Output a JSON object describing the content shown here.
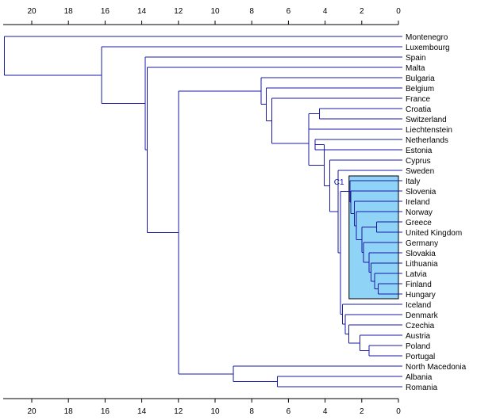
{
  "diagram": {
    "type": "dendrogram",
    "axis_ticks": [
      "20",
      "18",
      "16",
      "14",
      "12",
      "10",
      "8",
      "6",
      "4",
      "2",
      "0"
    ],
    "axis_range": [
      21.5,
      0
    ],
    "colors": {
      "branch": "#1a1aa6",
      "highlight_fill": "#8fd3f7",
      "highlight_border": "#000000",
      "axis": "#000000"
    },
    "leaves": [
      "Montenegro",
      "Luxembourg",
      "Spain",
      "Malta",
      "Bulgaria",
      "Belgium",
      "France",
      "Croatia",
      "Switzerland",
      "Liechtenstein",
      "Netherlands",
      "Estonia",
      "Cyprus",
      "Sweden",
      "Italy",
      "Slovenia",
      "Ireland",
      "Norway",
      "Greece",
      "United Kingdom",
      "Germany",
      "Slovakia",
      "Lithuania",
      "Latvia",
      "Finland",
      "Hungary",
      "Iceland",
      "Denmark",
      "Czechia",
      "Austria",
      "Poland",
      "Portugal",
      "North Macedonia",
      "Albania",
      "Romania"
    ],
    "merges": [
      {
        "id": "nPoPt",
        "children": [
          "Poland",
          "Portugal"
        ],
        "height": 1.6
      },
      {
        "id": "nGrUK",
        "children": [
          "Greece",
          "United Kingdom"
        ],
        "height": 1.2
      },
      {
        "id": "nFiHu",
        "children": [
          "Finland",
          "Hungary"
        ],
        "height": 1.1
      },
      {
        "id": "nLvFH",
        "children": [
          "Latvia",
          "nFiHu"
        ],
        "height": 1.3
      },
      {
        "id": "nLtLF",
        "children": [
          "Lithuania",
          "nLvFH"
        ],
        "height": 1.5
      },
      {
        "id": "nSkLt",
        "children": [
          "Slovakia",
          "nLtLF"
        ],
        "height": 1.6
      },
      {
        "id": "nDeSk",
        "children": [
          "Germany",
          "nSkLt"
        ],
        "height": 1.9
      },
      {
        "id": "nGrDe",
        "children": [
          "nGrUK",
          "nDeSk"
        ],
        "height": 2.0
      },
      {
        "id": "nNoGr",
        "children": [
          "Norway",
          "nGrDe"
        ],
        "height": 2.3
      },
      {
        "id": "nIeNo",
        "children": [
          "Ireland",
          "nNoGr"
        ],
        "height": 2.4
      },
      {
        "id": "nSiIe",
        "children": [
          "Slovenia",
          "nIeNo"
        ],
        "height": 2.6
      },
      {
        "id": "nItSi",
        "children": [
          "Italy",
          "nSiIe"
        ],
        "height": 2.65
      },
      {
        "id": "nAtPo",
        "children": [
          "Austria",
          "nPoPt"
        ],
        "height": 2.1
      },
      {
        "id": "nCzAt",
        "children": [
          "Czechia",
          "nAtPo"
        ],
        "height": 2.7
      },
      {
        "id": "nDkCz",
        "children": [
          "Denmark",
          "nCzAt"
        ],
        "height": 2.9
      },
      {
        "id": "nIsDk",
        "children": [
          "Iceland",
          "nDkCz"
        ],
        "height": 3.05
      },
      {
        "id": "nItIs",
        "children": [
          "nItSi",
          "nIsDk"
        ],
        "height": 3.15
      },
      {
        "id": "nSeIt",
        "children": [
          "Sweden",
          "nItIs"
        ],
        "height": 3.3
      },
      {
        "id": "nCySe",
        "children": [
          "Cyprus",
          "nSeIt"
        ],
        "height": 3.75
      },
      {
        "id": "nHrCh",
        "children": [
          "Croatia",
          "Switzerland"
        ],
        "height": 4.3
      },
      {
        "id": "nHrLi",
        "children": [
          "nHrCh",
          "Liechtenstein"
        ],
        "height": 4.9
      },
      {
        "id": "nNlEe",
        "children": [
          "Netherlands",
          "Estonia"
        ],
        "height": 4.55
      },
      {
        "id": "nNeCy",
        "children": [
          "nNlEe",
          "nCySe"
        ],
        "height": 4.05
      },
      {
        "id": "nHrNe",
        "children": [
          "nHrLi",
          "nNeCy"
        ],
        "height": 4.9
      },
      {
        "id": "nFrHr",
        "children": [
          "France",
          "nHrNe"
        ],
        "height": 6.9
      },
      {
        "id": "nBeFr",
        "children": [
          "Belgium",
          "nFrHr"
        ],
        "height": 7.2
      },
      {
        "id": "nBgBe",
        "children": [
          "Bulgaria",
          "nBeFr"
        ],
        "height": 7.5
      },
      {
        "id": "nAlRo",
        "children": [
          "Albania",
          "Romania"
        ],
        "height": 6.6
      },
      {
        "id": "nMkAl",
        "children": [
          "North Macedonia",
          "nAlRo"
        ],
        "height": 9.0
      },
      {
        "id": "nBgMk",
        "children": [
          "nBgBe",
          "nMkAl"
        ],
        "height": 12.0
      },
      {
        "id": "nMtBg",
        "children": [
          "Malta",
          "nBgMk"
        ],
        "height": 13.7
      },
      {
        "id": "nEsMt",
        "children": [
          "Spain",
          "nMtBg"
        ],
        "height": 13.8
      },
      {
        "id": "nLuEs",
        "children": [
          "Luxembourg",
          "nEsMt"
        ],
        "height": 16.2
      },
      {
        "id": "nRoot",
        "children": [
          "Montenegro",
          "nLuEs"
        ],
        "height": 21.5
      }
    ],
    "highlight": {
      "label": "C1",
      "node": "nItSi",
      "first_leaf": "Italy",
      "last_leaf": "Hungary"
    }
  }
}
